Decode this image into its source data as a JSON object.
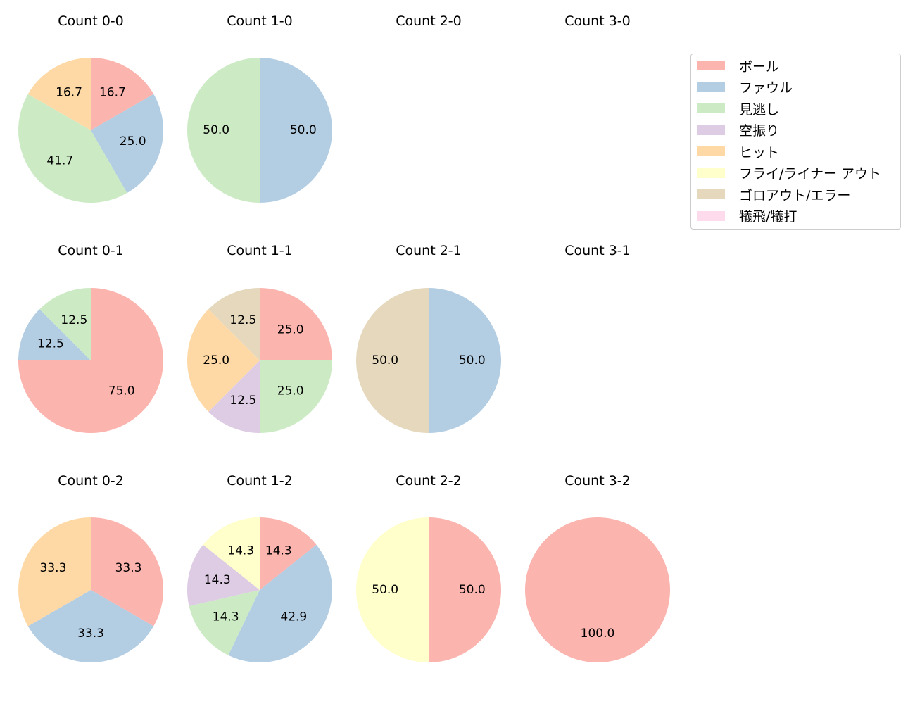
{
  "colors": {
    "ball": "#fbb4ae",
    "foul": "#b3cde3",
    "called_strike": "#ccebc5",
    "swinging_strike": "#decbe4",
    "hit": "#fed9a6",
    "fly_liner_out": "#ffffcc",
    "ground_out_error": "#e5d8bd",
    "sacrifice": "#fddaec"
  },
  "legend": {
    "items": [
      {
        "key": "ball",
        "label": "ボール"
      },
      {
        "key": "foul",
        "label": "ファウル"
      },
      {
        "key": "called_strike",
        "label": "見逃し"
      },
      {
        "key": "swinging_strike",
        "label": "空振り"
      },
      {
        "key": "hit",
        "label": "ヒット"
      },
      {
        "key": "fly_liner_out",
        "label": "フライ/ライナー アウト"
      },
      {
        "key": "ground_out_error",
        "label": "ゴロアウト/エラー"
      },
      {
        "key": "sacrifice",
        "label": "犠飛/犠打"
      }
    ]
  },
  "chart_data": [
    {
      "type": "pie",
      "title": "Count 0-0",
      "slices": [
        {
          "key": "ball",
          "value": 16.7
        },
        {
          "key": "foul",
          "value": 25.0
        },
        {
          "key": "called_strike",
          "value": 41.7
        },
        {
          "key": "hit",
          "value": 16.7
        }
      ]
    },
    {
      "type": "pie",
      "title": "Count 1-0",
      "slices": [
        {
          "key": "foul",
          "value": 50.0
        },
        {
          "key": "called_strike",
          "value": 50.0
        }
      ]
    },
    {
      "type": "pie",
      "title": "Count 2-0",
      "slices": []
    },
    {
      "type": "pie",
      "title": "Count 3-0",
      "slices": []
    },
    {
      "type": "pie",
      "title": "Count 0-1",
      "slices": [
        {
          "key": "ball",
          "value": 75.0
        },
        {
          "key": "foul",
          "value": 12.5
        },
        {
          "key": "called_strike",
          "value": 12.5
        }
      ]
    },
    {
      "type": "pie",
      "title": "Count 1-1",
      "slices": [
        {
          "key": "ball",
          "value": 25.0
        },
        {
          "key": "called_strike",
          "value": 25.0
        },
        {
          "key": "swinging_strike",
          "value": 12.5
        },
        {
          "key": "hit",
          "value": 25.0
        },
        {
          "key": "ground_out_error",
          "value": 12.5
        }
      ]
    },
    {
      "type": "pie",
      "title": "Count 2-1",
      "slices": [
        {
          "key": "foul",
          "value": 50.0
        },
        {
          "key": "ground_out_error",
          "value": 50.0
        }
      ]
    },
    {
      "type": "pie",
      "title": "Count 3-1",
      "slices": []
    },
    {
      "type": "pie",
      "title": "Count 0-2",
      "slices": [
        {
          "key": "ball",
          "value": 33.3
        },
        {
          "key": "foul",
          "value": 33.3
        },
        {
          "key": "hit",
          "value": 33.3
        }
      ]
    },
    {
      "type": "pie",
      "title": "Count 1-2",
      "slices": [
        {
          "key": "ball",
          "value": 14.3
        },
        {
          "key": "foul",
          "value": 42.9
        },
        {
          "key": "called_strike",
          "value": 14.3
        },
        {
          "key": "swinging_strike",
          "value": 14.3
        },
        {
          "key": "fly_liner_out",
          "value": 14.3
        }
      ]
    },
    {
      "type": "pie",
      "title": "Count 2-2",
      "slices": [
        {
          "key": "ball",
          "value": 50.0
        },
        {
          "key": "fly_liner_out",
          "value": 50.0
        }
      ]
    },
    {
      "type": "pie",
      "title": "Count 3-2",
      "slices": [
        {
          "key": "ball",
          "value": 100.0
        }
      ]
    }
  ]
}
